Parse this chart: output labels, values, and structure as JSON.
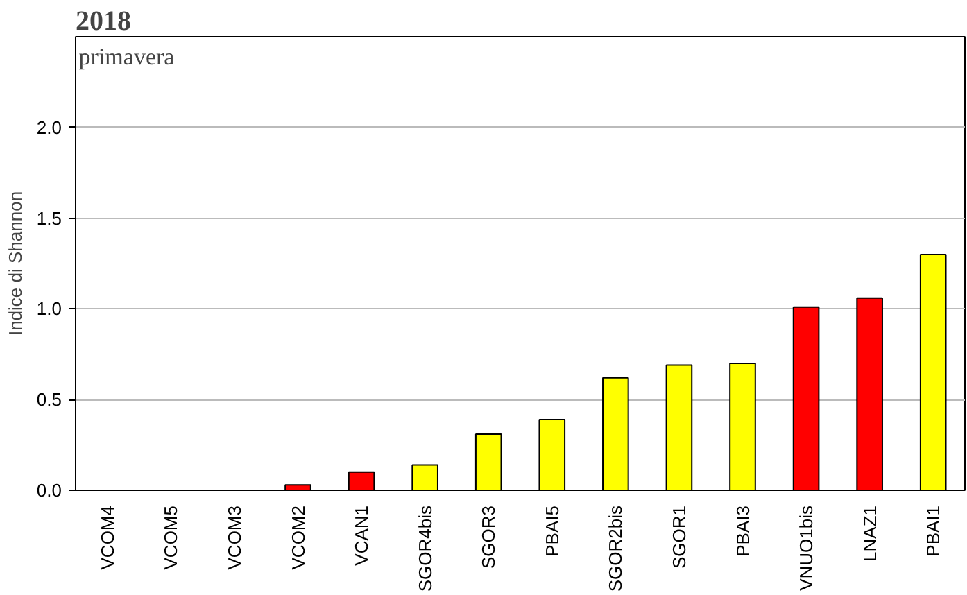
{
  "chart_data": {
    "type": "bar",
    "title": "2018",
    "ylabel": "Indice di Shannon",
    "annotations": [
      "primavera"
    ],
    "categories": [
      "VCOM4",
      "VCOM5",
      "VCOM3",
      "VCOM2",
      "VCAN1",
      "SGOR4bis",
      "SGOR3",
      "PBAI5",
      "SGOR2bis",
      "SGOR1",
      "PBAI3",
      "VNUO1bis",
      "LNAZ1",
      "PBAI1"
    ],
    "values": [
      0,
      0,
      0,
      0.03,
      0.1,
      0.14,
      0.31,
      0.39,
      0.62,
      0.69,
      0.7,
      1.01,
      1.06,
      1.3
    ],
    "colors": [
      null,
      null,
      null,
      "#ff0000",
      "#ff0000",
      "#ffff00",
      "#ffff00",
      "#ffff00",
      "#ffff00",
      "#ffff00",
      "#ffff00",
      "#ff0000",
      "#ff0000",
      "#ffff00"
    ],
    "ylim": [
      0,
      2.5
    ],
    "yticks": [
      {
        "value": 0,
        "label": "0.0"
      },
      {
        "value": 0.5,
        "label": "0.5"
      },
      {
        "value": 1,
        "label": "1.0"
      },
      {
        "value": 1.5,
        "label": "1.5"
      },
      {
        "value": 2,
        "label": "2.0"
      }
    ],
    "grid": "y"
  }
}
